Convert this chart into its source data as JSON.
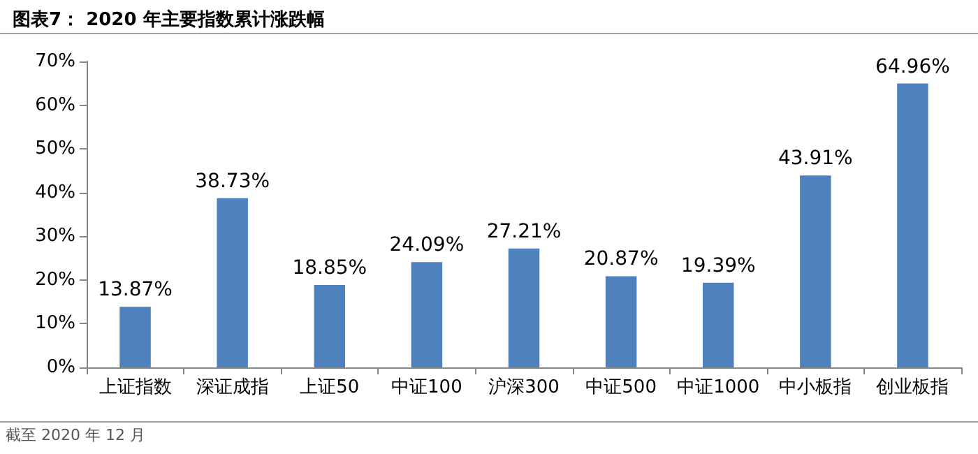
{
  "chart_data": {
    "type": "bar",
    "title": "图表7： 2020 年主要指数累计涨跌幅",
    "categories": [
      "上证指数",
      "深证成指",
      "上证50",
      "中证100",
      "沪深300",
      "中证500",
      "中证1000",
      "中小板指",
      "创业板指"
    ],
    "values": [
      13.87,
      38.73,
      18.85,
      24.09,
      27.21,
      20.87,
      19.39,
      43.91,
      64.96
    ],
    "value_labels": [
      "13.87%",
      "38.73%",
      "18.85%",
      "24.09%",
      "27.21%",
      "20.87%",
      "19.39%",
      "43.91%",
      "64.96%"
    ],
    "color": "#4f81bd",
    "ylim": [
      0,
      70
    ],
    "yticks": [
      {
        "value": 0,
        "label": "0%"
      },
      {
        "value": 10,
        "label": "10%"
      },
      {
        "value": 20,
        "label": "20%"
      },
      {
        "value": 30,
        "label": "30%"
      },
      {
        "value": 40,
        "label": "40%"
      },
      {
        "value": 50,
        "label": "50%"
      },
      {
        "value": 60,
        "label": "60%"
      },
      {
        "value": 70,
        "label": "70%"
      }
    ],
    "grid": false,
    "annotations": [
      "截至 2020 年 12 月"
    ]
  }
}
